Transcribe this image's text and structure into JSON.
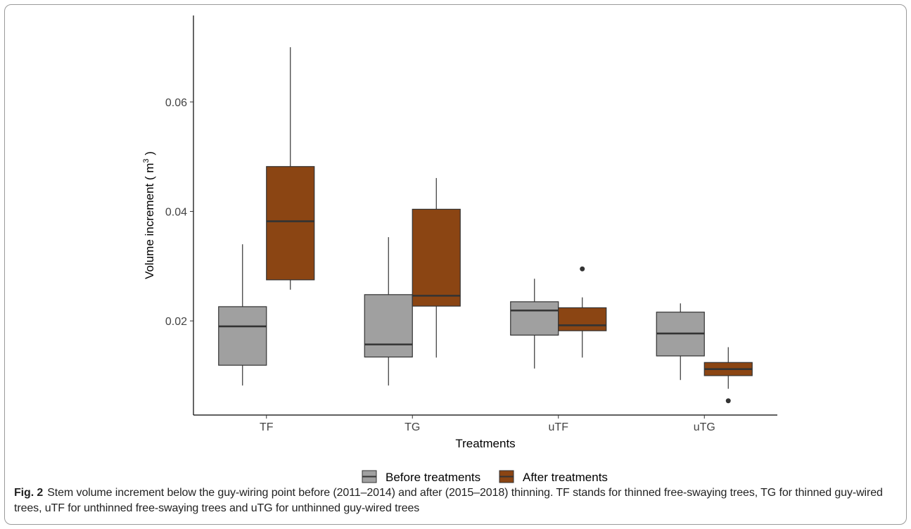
{
  "colors": {
    "before": "#a0a0a0",
    "after": "#8b4513",
    "outline": "#333333"
  },
  "legend": {
    "before_label": "Before treatments",
    "after_label": "After treatments"
  },
  "caption": {
    "label": "Fig. 2",
    "text": "Stem volume increment below the guy-wiring point before (2011–2014) and after (2015–2018) thinning. TF stands for thinned free-swaying trees, TG for thinned guy-wired trees, uTF for unthinned free-swaying trees and uTG for unthinned guy-wired trees"
  },
  "chart_data": {
    "type": "boxplot",
    "xlabel": "Treatments",
    "ylabel": "Volume increment ( m",
    "ylabel_superscript": "3",
    "ylabel_close": " )",
    "ylim": [
      0.0028,
      0.0758
    ],
    "yticks": [
      0.02,
      0.04,
      0.06
    ],
    "ytick_labels": [
      "0.02",
      "0.04",
      "0.06"
    ],
    "grid": false,
    "legend_position": "bottom",
    "categories": [
      "TF",
      "TG",
      "uTF",
      "uTG"
    ],
    "series": [
      {
        "name": "Before treatments",
        "boxes": [
          {
            "whisker_low": 0.0082,
            "q1": 0.0119,
            "median": 0.019,
            "q3": 0.0226,
            "whisker_high": 0.034,
            "outliers": []
          },
          {
            "whisker_low": 0.0082,
            "q1": 0.0134,
            "median": 0.0157,
            "q3": 0.0248,
            "whisker_high": 0.0353,
            "outliers": []
          },
          {
            "whisker_low": 0.0113,
            "q1": 0.0174,
            "median": 0.0219,
            "q3": 0.0235,
            "whisker_high": 0.0277,
            "outliers": []
          },
          {
            "whisker_low": 0.0092,
            "q1": 0.0136,
            "median": 0.0177,
            "q3": 0.0216,
            "whisker_high": 0.0232,
            "outliers": []
          }
        ]
      },
      {
        "name": "After treatments",
        "boxes": [
          {
            "whisker_low": 0.0257,
            "q1": 0.0275,
            "median": 0.0382,
            "q3": 0.0482,
            "whisker_high": 0.07,
            "outliers": []
          },
          {
            "whisker_low": 0.0133,
            "q1": 0.0227,
            "median": 0.0246,
            "q3": 0.0404,
            "whisker_high": 0.0461,
            "outliers": []
          },
          {
            "whisker_low": 0.0133,
            "q1": 0.0182,
            "median": 0.0192,
            "q3": 0.0224,
            "whisker_high": 0.0243,
            "outliers": [
              0.0295
            ]
          },
          {
            "whisker_low": 0.0076,
            "q1": 0.01,
            "median": 0.0112,
            "q3": 0.0124,
            "whisker_high": 0.0152,
            "outliers": [
              0.0054
            ]
          }
        ]
      }
    ]
  }
}
